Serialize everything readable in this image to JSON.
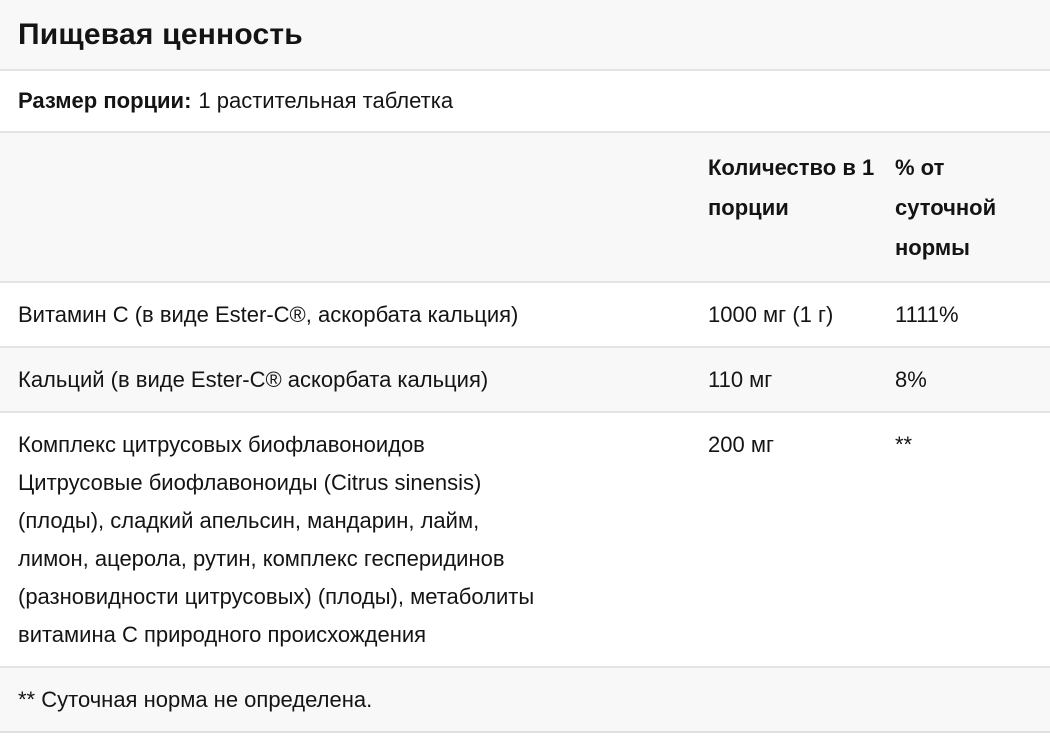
{
  "panel": {
    "title": "Пищевая ценность",
    "serving": {
      "label": "Размер порции:",
      "value": "1 растительная таблетка"
    },
    "table": {
      "columns": {
        "amount": "Количество в 1 порции",
        "daily_value": "% от суточной нормы"
      },
      "rows": [
        {
          "name": "Витамин C (в виде Ester-C®, аскорбата кальция)",
          "amount": "1000 мг (1 г)",
          "daily_value": "1111%"
        },
        {
          "name": "Кальций (в виде Ester-C® аскорбата кальция)",
          "amount": "110 мг",
          "daily_value": "8%"
        },
        {
          "name": "Комплекс цитрусовых биофлавоноидов\nЦитрусовые биофлавоноиды (Citrus sinensis)\n(плоды), сладкий апельсин, мандарин, лайм,\nлимон, ацерола, рутин, комплекс гесперидинов\n(разновидности цитрусовых) (плоды), метаболиты\nвитамина C природного происхождения",
          "amount": "200 мг",
          "daily_value": "**"
        }
      ],
      "footnote": "** Суточная норма не определена."
    },
    "colors": {
      "band_background": "#f8f8f8",
      "divider": "#e4e4e4",
      "text": "#141414"
    }
  }
}
